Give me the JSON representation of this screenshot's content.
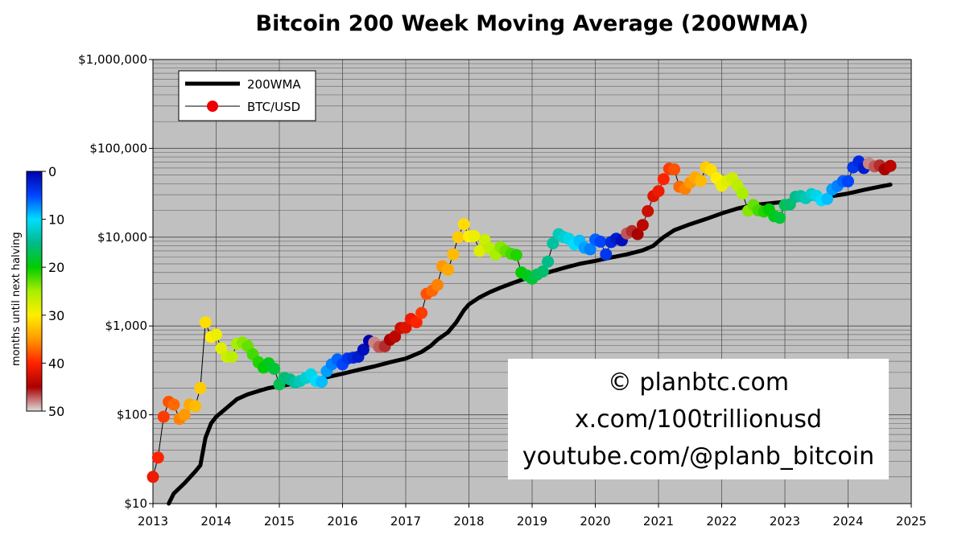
{
  "chart_data": {
    "type": "scatter",
    "title": "Bitcoin 200 Week Moving Average (200WMA)",
    "xlabel": "",
    "ylabel": "",
    "xlim": [
      2013,
      2025
    ],
    "ylim": [
      10,
      1000000
    ],
    "yscale": "log",
    "grid": true,
    "background_color": "#c0c0c0",
    "legend_position": "top-left",
    "x_ticks": [
      "2013",
      "2014",
      "2015",
      "2016",
      "2017",
      "2018",
      "2019",
      "2020",
      "2021",
      "2022",
      "2023",
      "2024",
      "2025"
    ],
    "y_ticks": [
      "$10",
      "$100",
      "$1,000",
      "$10,000",
      "$100,000",
      "$1,000,000"
    ],
    "y_tick_values": [
      10,
      100,
      1000,
      10000,
      100000,
      1000000
    ],
    "colorbar": {
      "label": "months until next halving",
      "ticks": [
        "0",
        "10",
        "20",
        "30",
        "40",
        "50"
      ],
      "tick_values": [
        0,
        10,
        20,
        30,
        40,
        50
      ]
    },
    "series": [
      {
        "name": "200WMA",
        "style": "line",
        "color": "#000000",
        "x": [
          2013.25,
          2013.33,
          2013.5,
          2013.67,
          2013.75,
          2013.83,
          2013.92,
          2014.0,
          2014.17,
          2014.33,
          2014.5,
          2014.67,
          2014.83,
          2015.0,
          2015.25,
          2015.5,
          2015.75,
          2016.0,
          2016.25,
          2016.5,
          2016.75,
          2017.0,
          2017.25,
          2017.4,
          2017.5,
          2017.67,
          2017.8,
          2017.92,
          2018.0,
          2018.17,
          2018.33,
          2018.5,
          2018.67,
          2018.83,
          2019.0,
          2019.25,
          2019.5,
          2019.75,
          2020.0,
          2020.25,
          2020.5,
          2020.75,
          2020.92,
          2021.0,
          2021.08,
          2021.25,
          2021.5,
          2021.75,
          2022.0,
          2022.25,
          2022.5,
          2022.75,
          2023.0,
          2023.25,
          2023.5,
          2023.75,
          2024.0,
          2024.25,
          2024.5,
          2024.67
        ],
        "values": [
          10,
          13,
          17,
          23,
          27,
          55,
          80,
          95,
          120,
          150,
          170,
          185,
          200,
          210,
          225,
          245,
          265,
          290,
          320,
          350,
          390,
          430,
          510,
          600,
          700,
          850,
          1100,
          1500,
          1750,
          2100,
          2400,
          2700,
          3000,
          3300,
          3600,
          4000,
          4500,
          5000,
          5400,
          5900,
          6400,
          7100,
          8000,
          9000,
          10000,
          12000,
          14000,
          16000,
          18500,
          21000,
          23000,
          24000,
          25000,
          26500,
          27500,
          29000,
          31000,
          34000,
          37000,
          39000
        ]
      },
      {
        "name": "BTC/USD",
        "style": "line+markers",
        "color": "#000000",
        "x": [
          2013.0,
          2013.08,
          2013.17,
          2013.25,
          2013.33,
          2013.42,
          2013.5,
          2013.58,
          2013.67,
          2013.75,
          2013.83,
          2013.92,
          2014.0,
          2014.08,
          2014.17,
          2014.25,
          2014.33,
          2014.42,
          2014.5,
          2014.58,
          2014.67,
          2014.75,
          2014.83,
          2014.92,
          2015.0,
          2015.08,
          2015.17,
          2015.25,
          2015.33,
          2015.42,
          2015.5,
          2015.58,
          2015.67,
          2015.75,
          2015.83,
          2015.92,
          2016.0,
          2016.08,
          2016.17,
          2016.25,
          2016.33,
          2016.42,
          2016.5,
          2016.58,
          2016.67,
          2016.75,
          2016.83,
          2016.92,
          2017.0,
          2017.08,
          2017.17,
          2017.25,
          2017.33,
          2017.42,
          2017.5,
          2017.58,
          2017.67,
          2017.75,
          2017.83,
          2017.92,
          2018.0,
          2018.08,
          2018.17,
          2018.25,
          2018.33,
          2018.42,
          2018.5,
          2018.58,
          2018.67,
          2018.75,
          2018.83,
          2018.92,
          2019.0,
          2019.08,
          2019.17,
          2019.25,
          2019.33,
          2019.42,
          2019.5,
          2019.58,
          2019.67,
          2019.75,
          2019.83,
          2019.92,
          2020.0,
          2020.08,
          2020.17,
          2020.25,
          2020.33,
          2020.42,
          2020.5,
          2020.58,
          2020.67,
          2020.75,
          2020.83,
          2020.92,
          2021.0,
          2021.08,
          2021.17,
          2021.25,
          2021.33,
          2021.42,
          2021.5,
          2021.58,
          2021.67,
          2021.75,
          2021.83,
          2021.92,
          2022.0,
          2022.08,
          2022.17,
          2022.25,
          2022.33,
          2022.42,
          2022.5,
          2022.58,
          2022.67,
          2022.75,
          2022.83,
          2022.92,
          2023.0,
          2023.08,
          2023.17,
          2023.25,
          2023.33,
          2023.42,
          2023.5,
          2023.58,
          2023.67,
          2023.75,
          2023.83,
          2023.92,
          2024.0,
          2024.08,
          2024.17,
          2024.25,
          2024.33,
          2024.42,
          2024.5,
          2024.58,
          2024.67
        ],
        "values": [
          20,
          33,
          95,
          140,
          130,
          90,
          100,
          130,
          125,
          200,
          1100,
          750,
          800,
          560,
          450,
          450,
          630,
          650,
          590,
          480,
          390,
          340,
          380,
          330,
          220,
          260,
          250,
          230,
          240,
          260,
          285,
          240,
          235,
          310,
          370,
          420,
          370,
          430,
          440,
          450,
          540,
          680,
          650,
          580,
          590,
          700,
          760,
          950,
          960,
          1200,
          1100,
          1400,
          2300,
          2500,
          2900,
          4700,
          4300,
          6400,
          10000,
          14000,
          10200,
          10300,
          7000,
          9300,
          7500,
          6400,
          7700,
          7000,
          6500,
          6300,
          4000,
          3700,
          3400,
          3800,
          4100,
          5300,
          8500,
          10800,
          10000,
          9600,
          8300,
          9100,
          7600,
          7300,
          9400,
          8900,
          6400,
          8800,
          9600,
          9200,
          11000,
          11700,
          10800,
          13700,
          19600,
          29000,
          33000,
          45000,
          59000,
          58000,
          37000,
          35000,
          41000,
          47000,
          43000,
          61000,
          57000,
          46000,
          38000,
          43000,
          46000,
          38000,
          31000,
          19800,
          23000,
          20000,
          19400,
          20500,
          17200,
          16500,
          23000,
          23400,
          28500,
          29000,
          27500,
          30500,
          29200,
          26000,
          27000,
          34500,
          37700,
          42500,
          42500,
          61000,
          71000,
          60000,
          67500,
          62500,
          64000,
          58000,
          63500
        ],
        "months_until_halving": [
          41,
          40,
          39,
          38,
          37,
          36,
          35,
          34,
          33,
          32,
          31,
          30,
          29,
          28,
          27,
          26,
          25,
          24,
          23,
          22,
          21,
          20,
          19,
          18,
          17,
          16,
          15,
          14,
          13,
          12,
          11,
          10,
          9,
          8,
          7,
          6,
          5,
          4,
          3,
          2,
          1,
          0,
          48,
          47,
          46,
          45,
          44,
          43,
          42,
          41,
          40,
          39,
          38,
          37,
          36,
          35,
          34,
          33,
          32,
          31,
          30,
          29,
          28,
          27,
          26,
          25,
          24,
          23,
          22,
          21,
          20,
          19,
          18,
          17,
          16,
          15,
          14,
          13,
          12,
          11,
          10,
          9,
          8,
          7,
          6,
          5,
          4,
          3,
          2,
          1,
          47,
          46,
          45,
          44,
          43,
          42,
          41,
          40,
          39,
          38,
          37,
          36,
          35,
          34,
          33,
          32,
          31,
          30,
          29,
          28,
          27,
          26,
          25,
          24,
          23,
          22,
          21,
          20,
          19,
          18,
          17,
          16,
          15,
          14,
          13,
          12,
          11,
          10,
          9,
          8,
          7,
          6,
          5,
          4,
          3,
          2,
          48,
          47,
          46,
          45,
          44
        ]
      }
    ]
  },
  "watermark": {
    "line1": "© planbtc.com",
    "line2": "x.com/100trillionusd",
    "line3": "youtube.com/@planb_bitcoin"
  }
}
